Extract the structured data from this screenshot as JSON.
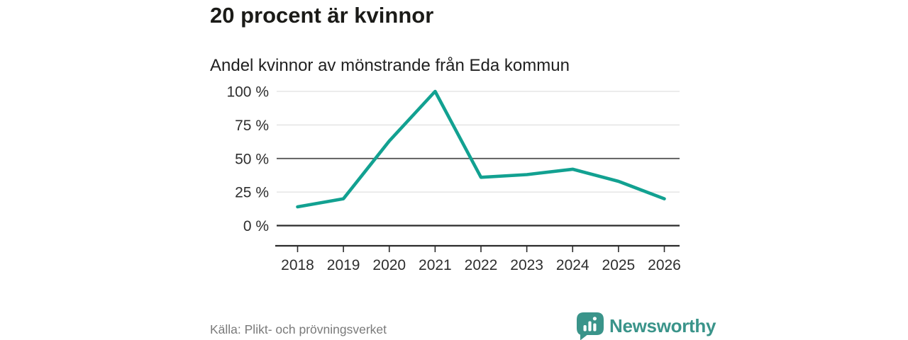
{
  "header": {
    "title": "20 procent är kvinnor",
    "subtitle": "Andel kvinnor av mönstrande från Eda kommun"
  },
  "chart_data": {
    "type": "line",
    "title": "20 procent är kvinnor",
    "subtitle": "Andel kvinnor av mönstrande från Eda kommun",
    "categories": [
      2018,
      2019,
      2020,
      2021,
      2022,
      2023,
      2024,
      2025,
      2026
    ],
    "series": [
      {
        "name": "Andel kvinnor av mönstrande",
        "values": [
          14,
          20,
          63,
          100,
          36,
          38,
          42,
          33,
          20
        ]
      }
    ],
    "unit": "%",
    "ylim": [
      0,
      100
    ],
    "yticks": [
      0,
      25,
      50,
      75,
      100
    ],
    "ytick_labels": [
      "0 %",
      "25 %",
      "50 %",
      "75 %",
      "100 %"
    ],
    "grid": "horizontal",
    "zero_line": true,
    "emphasized_gridline": 50,
    "legend": "none",
    "line_color": "#12a191"
  },
  "footer": {
    "source": "Källa: Plikt- och prövningsverket"
  },
  "branding": {
    "name": "Newsworthy",
    "logo_icon": "bar-chart-speech-bubble",
    "color": "#3a948a"
  },
  "colors": {
    "accent_line": "#12a191",
    "brand_teal": "#3a948a",
    "gridline_light": "#d9d9d9",
    "gridline_mid": "#4d4d4d",
    "axis_dark": "#2b2b2b",
    "tick_text": "#2e2e2e",
    "text_muted": "#7a7a7a",
    "background": "#ffffff"
  }
}
